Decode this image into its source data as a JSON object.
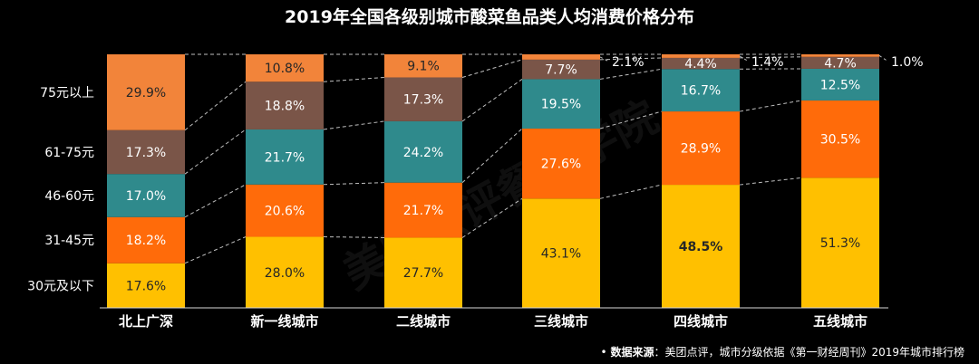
{
  "source": {
    "bullet": "•",
    "label": "数据来源",
    "text": "：美团点评，城市分级依据《第一财经周刊》2019年城市排行榜"
  },
  "watermark": "美团点评餐饮学院",
  "chart_data": {
    "type": "bar",
    "stacked": true,
    "title": "2019年全国各级别城市酸菜鱼品类人均消费价格分布",
    "categories": [
      "北上广深",
      "新一线城市",
      "二线城市",
      "三线城市",
      "四线城市",
      "五线城市"
    ],
    "series": [
      {
        "name": "30元及以下",
        "color": "#FFC000",
        "label_color": "#262626",
        "values": [
          17.6,
          28.0,
          27.7,
          43.1,
          48.5,
          51.3
        ]
      },
      {
        "name": "31-45元",
        "color": "#FF6B0A",
        "label_color": "#ffffff",
        "values": [
          18.2,
          20.6,
          21.7,
          27.6,
          28.9,
          30.5
        ]
      },
      {
        "name": "46-60元",
        "color": "#2F8A8C",
        "label_color": "#ffffff",
        "values": [
          17.0,
          21.7,
          24.2,
          19.5,
          16.7,
          12.5
        ]
      },
      {
        "name": "61-75元",
        "color": "#7A5548",
        "label_color": "#ffffff",
        "values": [
          17.3,
          18.8,
          17.3,
          7.7,
          4.4,
          4.7
        ]
      },
      {
        "name": "75元以上",
        "color": "#F2843A",
        "label_color": "#262626",
        "values": [
          29.9,
          10.8,
          9.1,
          2.1,
          1.4,
          1.0
        ]
      }
    ],
    "value_labels": [
      [
        "17.6%",
        "28.0%",
        "27.7%",
        "43.1%",
        "48.5%",
        "51.3%"
      ],
      [
        "18.2%",
        "20.6%",
        "21.7%",
        "27.6%",
        "28.9%",
        "30.5%"
      ],
      [
        "17.0%",
        "21.7%",
        "24.2%",
        "19.5%",
        "16.7%",
        "12.5%"
      ],
      [
        "17.3%",
        "18.8%",
        "17.3%",
        "7.7%",
        "4.4%",
        "4.7%"
      ],
      [
        "29.9%",
        "10.8%",
        "9.1%",
        "2.1%",
        "1.4%",
        "1.0%"
      ]
    ],
    "bold_value": "48.5%",
    "ylim": [
      0,
      100
    ],
    "legend_position": "left",
    "connector_lines": "dashed"
  }
}
